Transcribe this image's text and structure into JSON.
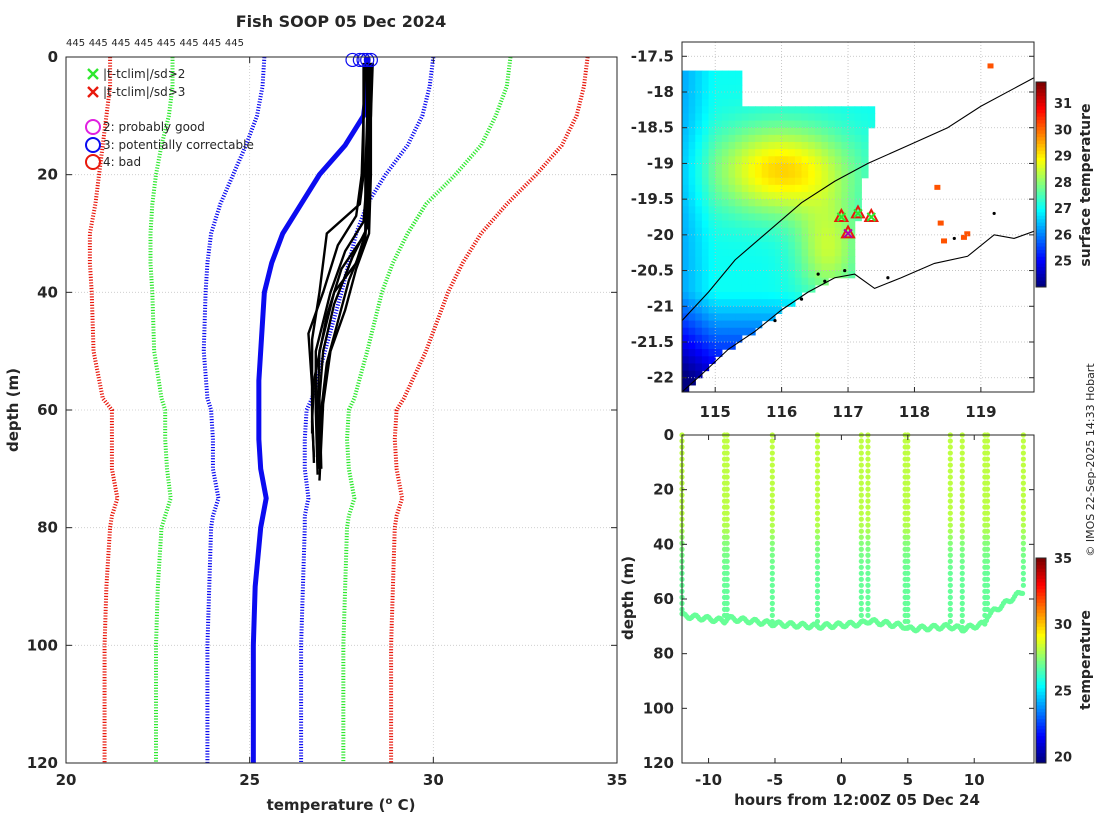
{
  "title": "Fish SOOP 05 Dec 2024",
  "top_counts": [
    "445",
    "445",
    "445",
    "445",
    "445",
    "445",
    "445",
    "445"
  ],
  "credit": "© IMOS 22-Sep-2025 14:33 Hobart",
  "colors": {
    "red": "#e8180c",
    "green": "#2ee82e",
    "blue": "#0b0bf0",
    "black": "#000000",
    "magenta": "#e020e0",
    "axis": "#262626",
    "grid": "#c8c8c8"
  },
  "legend": [
    {
      "label": "|t-tclim|/sd>2",
      "marker": "x",
      "color": "green"
    },
    {
      "label": "|t-tclim|/sd>3",
      "marker": "x",
      "color": "red"
    },
    {
      "label": "2: probably good",
      "marker": "o",
      "color": "magenta"
    },
    {
      "label": "3: potentially correctable",
      "marker": "o",
      "color": "blue"
    },
    {
      "label": "4: bad",
      "marker": "o",
      "color": "red"
    }
  ],
  "chart_data": [
    {
      "type": "line",
      "name": "profile",
      "xlabel": "temperature (",
      "xlabel_sup": "o",
      "xlabel_end": " C)",
      "ylabel": "depth (m)",
      "xlim": [
        20,
        35
      ],
      "ylim": [
        0,
        120
      ],
      "xticks": [
        "20",
        "25",
        "30",
        "35"
      ],
      "yticks": [
        "0",
        "20",
        "40",
        "60",
        "80",
        "100",
        "120"
      ],
      "clim_mean": {
        "depth": [
          0,
          5,
          10,
          15,
          20,
          25,
          30,
          35,
          40,
          45,
          50,
          55,
          60,
          65,
          70,
          75,
          80,
          90,
          100,
          110,
          120
        ],
        "temp": [
          28.2,
          28.2,
          28.1,
          27.6,
          26.9,
          26.4,
          25.9,
          25.6,
          25.4,
          25.35,
          25.3,
          25.25,
          25.25,
          25.25,
          25.3,
          25.45,
          25.3,
          25.15,
          25.1,
          25.1,
          25.1
        ]
      },
      "clim_bounds": [
        {
          "color": "red",
          "depth": [
            0,
            5,
            10,
            15,
            20,
            25,
            30,
            35,
            40,
            50,
            58,
            60,
            65,
            70,
            75,
            78,
            80,
            90,
            100,
            110,
            120
          ],
          "temp": [
            21.2,
            21.2,
            21.1,
            21.0,
            20.9,
            20.8,
            20.65,
            20.65,
            20.7,
            20.75,
            21.0,
            21.25,
            21.25,
            21.25,
            21.4,
            21.25,
            21.2,
            21.1,
            21.05,
            21.05,
            21.05
          ]
        },
        {
          "color": "green",
          "depth": [
            0,
            5,
            10,
            15,
            20,
            25,
            30,
            35,
            40,
            50,
            58,
            60,
            65,
            70,
            75,
            78,
            80,
            90,
            100,
            110,
            120
          ],
          "temp": [
            22.9,
            22.9,
            22.8,
            22.6,
            22.45,
            22.35,
            22.3,
            22.3,
            22.35,
            22.4,
            22.6,
            22.7,
            22.7,
            22.75,
            22.85,
            22.7,
            22.6,
            22.5,
            22.45,
            22.45,
            22.45
          ]
        },
        {
          "color": "blue",
          "depth": [
            0,
            5,
            10,
            15,
            20,
            25,
            30,
            35,
            40,
            50,
            58,
            60,
            65,
            70,
            75,
            78,
            80,
            90,
            100,
            110,
            120
          ],
          "temp": [
            25.4,
            25.35,
            25.2,
            24.9,
            24.55,
            24.2,
            23.95,
            23.85,
            23.8,
            23.75,
            23.85,
            23.95,
            24.0,
            24.0,
            24.15,
            24.0,
            23.95,
            23.9,
            23.85,
            23.85,
            23.85
          ]
        },
        {
          "color": "blue",
          "depth": [
            0,
            5,
            10,
            15,
            20,
            25,
            30,
            35,
            40,
            50,
            58,
            60,
            65,
            70,
            75,
            78,
            80,
            90,
            100,
            110,
            120
          ],
          "temp": [
            30.0,
            29.9,
            29.7,
            29.3,
            28.7,
            28.2,
            27.9,
            27.7,
            27.5,
            27.05,
            26.7,
            26.55,
            26.5,
            26.5,
            26.6,
            26.5,
            26.5,
            26.45,
            26.4,
            26.4,
            26.4
          ]
        },
        {
          "color": "green",
          "depth": [
            0,
            5,
            10,
            15,
            20,
            25,
            30,
            35,
            40,
            50,
            58,
            60,
            65,
            70,
            75,
            78,
            80,
            90,
            100,
            110,
            120
          ],
          "temp": [
            32.1,
            32.0,
            31.7,
            31.3,
            30.6,
            29.8,
            29.3,
            28.9,
            28.6,
            28.2,
            27.85,
            27.7,
            27.65,
            27.7,
            27.85,
            27.7,
            27.65,
            27.6,
            27.55,
            27.55,
            27.55
          ]
        },
        {
          "color": "red",
          "depth": [
            0,
            5,
            10,
            15,
            20,
            25,
            30,
            35,
            40,
            50,
            58,
            60,
            65,
            70,
            75,
            78,
            80,
            90,
            100,
            110,
            120
          ],
          "temp": [
            34.2,
            34.1,
            33.9,
            33.5,
            32.8,
            32.0,
            31.3,
            30.8,
            30.4,
            29.8,
            29.2,
            29.0,
            28.95,
            29.0,
            29.15,
            29.0,
            28.95,
            28.9,
            28.85,
            28.85,
            28.85
          ]
        }
      ],
      "profiles": [
        {
          "depth": [
            1,
            10,
            20,
            30,
            35,
            40,
            50,
            60,
            70
          ],
          "temp": [
            28.2,
            28.2,
            28.15,
            28.15,
            27.9,
            27.3,
            26.9,
            26.85,
            26.9
          ]
        },
        {
          "depth": [
            1,
            10,
            20,
            28,
            33,
            40,
            50,
            60,
            71
          ],
          "temp": [
            28.3,
            28.3,
            28.2,
            28.1,
            27.6,
            27.2,
            26.8,
            26.8,
            26.85
          ]
        },
        {
          "depth": [
            1,
            10,
            20,
            25,
            30,
            40,
            48,
            60,
            69
          ],
          "temp": [
            28.1,
            28.1,
            28.1,
            28.0,
            27.1,
            26.9,
            26.7,
            26.7,
            26.75
          ]
        },
        {
          "depth": [
            1,
            10,
            20,
            30,
            36,
            44,
            55,
            62,
            68
          ],
          "temp": [
            28.25,
            28.25,
            28.2,
            28.15,
            27.5,
            27.1,
            26.75,
            26.7,
            26.75
          ]
        },
        {
          "depth": [
            1,
            10,
            20,
            29,
            34,
            42,
            50,
            58,
            70
          ],
          "temp": [
            28.35,
            28.3,
            28.25,
            28.2,
            27.8,
            27.3,
            27.0,
            26.9,
            26.95
          ]
        },
        {
          "depth": [
            1,
            10,
            20,
            27,
            32,
            40,
            47,
            56,
            64
          ],
          "temp": [
            28.15,
            28.1,
            28.05,
            27.9,
            27.4,
            27.0,
            26.6,
            26.7,
            26.7
          ]
        },
        {
          "depth": [
            1,
            10,
            20,
            31,
            38,
            45,
            52,
            60,
            66
          ],
          "temp": [
            28.2,
            28.2,
            28.2,
            28.15,
            27.7,
            27.4,
            27.1,
            26.95,
            26.9
          ]
        },
        {
          "depth": [
            1,
            10,
            20,
            30,
            36,
            43,
            50,
            59,
            72
          ],
          "temp": [
            28.3,
            28.3,
            28.3,
            28.25,
            27.9,
            27.6,
            27.2,
            27.0,
            26.9
          ]
        }
      ],
      "flag_circles": {
        "color": "blue",
        "temps": [
          27.8,
          28.0,
          28.2,
          28.3,
          28.1
        ],
        "depth": 0.5
      }
    },
    {
      "type": "heatmap",
      "name": "sst_map",
      "cbar_label": "surface temperature",
      "xlim": [
        114.5,
        119.8
      ],
      "ylim": [
        -22.2,
        -17.3
      ],
      "xticks": [
        "115",
        "116",
        "117",
        "118",
        "119"
      ],
      "yticks": [
        "-17.5",
        "-18",
        "-18.5",
        "-19",
        "-19.5",
        "-20",
        "-20.5",
        "-21",
        "-21.5",
        "-22"
      ],
      "clim": [
        24,
        31.8
      ],
      "cbar_ticks": [
        "25",
        "26",
        "27",
        "28",
        "29",
        "30",
        "31"
      ],
      "track": [
        {
          "lon": 116.9,
          "lat": -19.75
        },
        {
          "lon": 117.15,
          "lat": -19.7
        },
        {
          "lon": 117.35,
          "lat": -19.75
        },
        {
          "lon": 117.0,
          "lat": -19.98
        }
      ],
      "isobath": [
        {
          "lon": 114.5,
          "lat": -21.2
        },
        {
          "lon": 114.9,
          "lat": -20.8
        },
        {
          "lon": 115.3,
          "lat": -20.35
        },
        {
          "lon": 115.8,
          "lat": -19.95
        },
        {
          "lon": 116.3,
          "lat": -19.55
        },
        {
          "lon": 116.8,
          "lat": -19.25
        },
        {
          "lon": 117.3,
          "lat": -19.0
        },
        {
          "lon": 117.9,
          "lat": -18.75
        },
        {
          "lon": 118.5,
          "lat": -18.5
        },
        {
          "lon": 119.0,
          "lat": -18.2
        },
        {
          "lon": 119.5,
          "lat": -17.95
        },
        {
          "lon": 119.8,
          "lat": -17.8
        }
      ],
      "coast": [
        {
          "lon": 114.5,
          "lat": -22.2
        },
        {
          "lon": 114.8,
          "lat": -21.95
        },
        {
          "lon": 115.2,
          "lat": -21.6
        },
        {
          "lon": 115.6,
          "lat": -21.35
        },
        {
          "lon": 116.0,
          "lat": -21.05
        },
        {
          "lon": 116.4,
          "lat": -20.8
        },
        {
          "lon": 116.8,
          "lat": -20.6
        },
        {
          "lon": 117.1,
          "lat": -20.55
        },
        {
          "lon": 117.4,
          "lat": -20.75
        },
        {
          "lon": 117.8,
          "lat": -20.6
        },
        {
          "lon": 118.3,
          "lat": -20.4
        },
        {
          "lon": 118.8,
          "lat": -20.3
        },
        {
          "lon": 119.2,
          "lat": -20.0
        },
        {
          "lon": 119.5,
          "lat": -20.05
        },
        {
          "lon": 119.8,
          "lat": -19.95
        }
      ]
    },
    {
      "type": "scatter",
      "name": "depth_time",
      "xlabel": "hours from 12:00Z 05 Dec 24",
      "ylabel": "depth (m)",
      "cbar_label": "temperature",
      "xlim": [
        -12,
        14.5
      ],
      "ylim": [
        0,
        120
      ],
      "xticks": [
        "-10",
        "-5",
        "0",
        "5",
        "10"
      ],
      "yticks": [
        "0",
        "20",
        "40",
        "60",
        "80",
        "100",
        "120"
      ],
      "clim": [
        19.5,
        35
      ],
      "cbar_ticks": [
        "20",
        "25",
        "30",
        "35"
      ],
      "profile_hours": [
        -12.0,
        -8.8,
        -8.6,
        -5.2,
        -1.8,
        1.5,
        2.0,
        4.8,
        5.0,
        8.2,
        9.1,
        10.8,
        11.0,
        13.7
      ],
      "bottom_depth": [
        66,
        68,
        67,
        69,
        70,
        69,
        68,
        70,
        71,
        70,
        71,
        69,
        66,
        57
      ]
    }
  ]
}
